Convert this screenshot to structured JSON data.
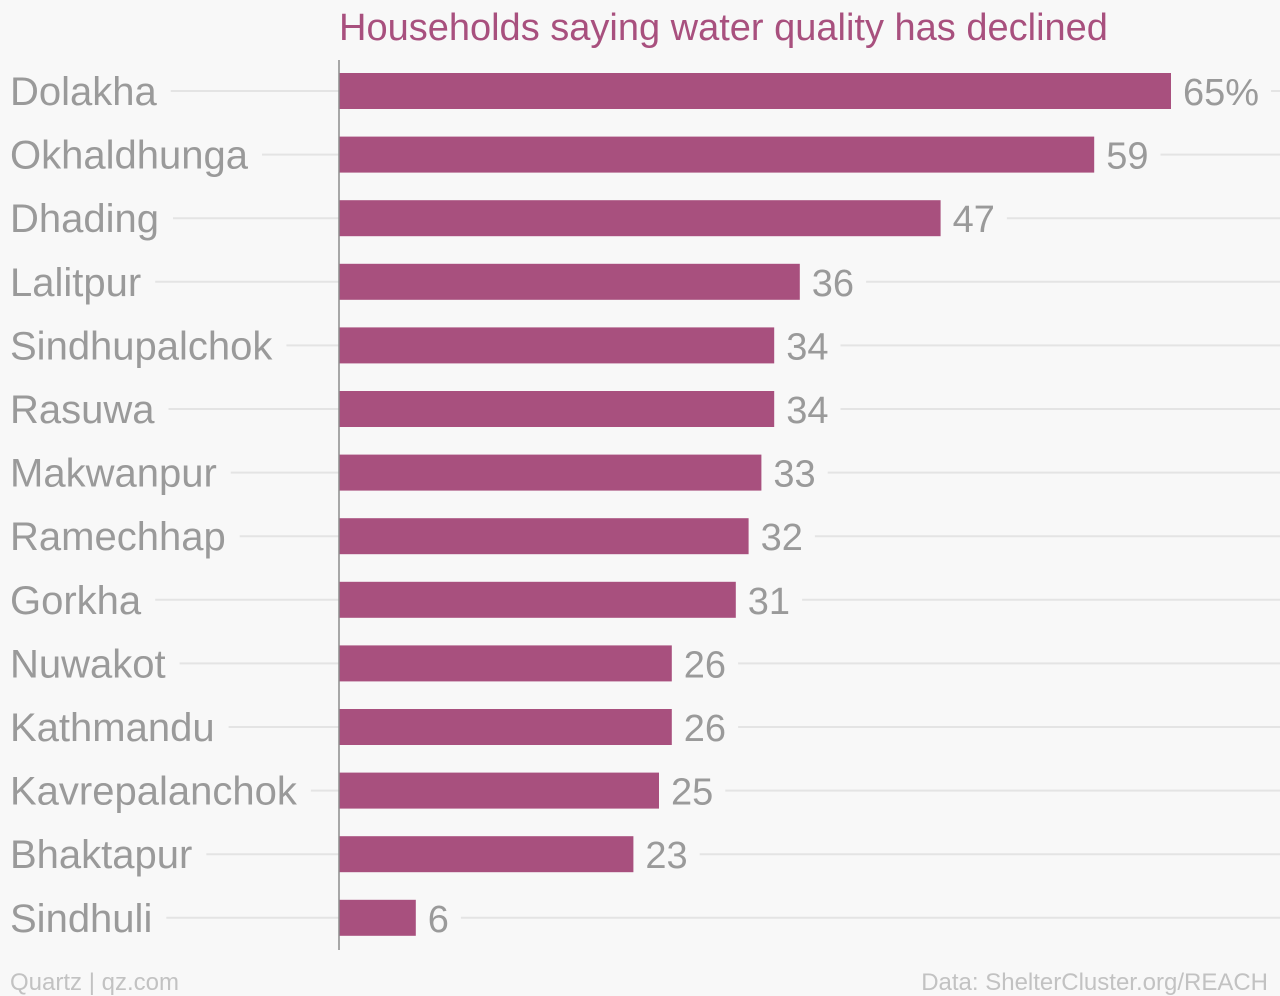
{
  "chart_data": {
    "type": "bar",
    "orientation": "horizontal",
    "title": "Households saying water quality has declined",
    "categories": [
      "Dolakha",
      "Okhaldhunga",
      "Dhading",
      "Lalitpur",
      "Sindhupalchok",
      "Rasuwa",
      "Makwanpur",
      "Ramechhap",
      "Gorkha",
      "Nuwakot",
      "Kathmandu",
      "Kavrepalanchok",
      "Bhaktapur",
      "Sindhuli"
    ],
    "values": [
      65,
      59,
      47,
      36,
      34,
      34,
      33,
      32,
      31,
      26,
      26,
      25,
      23,
      6
    ],
    "value_labels": [
      "65%",
      "59",
      "47",
      "36",
      "34",
      "34",
      "33",
      "32",
      "31",
      "26",
      "26",
      "25",
      "23",
      "6"
    ],
    "unit": "%",
    "xlim": [
      0,
      65
    ],
    "grid": true,
    "legend": "none",
    "bar_color": "#a8507e"
  },
  "footer": {
    "source_left": "Quartz | qz.com",
    "source_right": "Data: ShelterCluster.org/REACH"
  }
}
